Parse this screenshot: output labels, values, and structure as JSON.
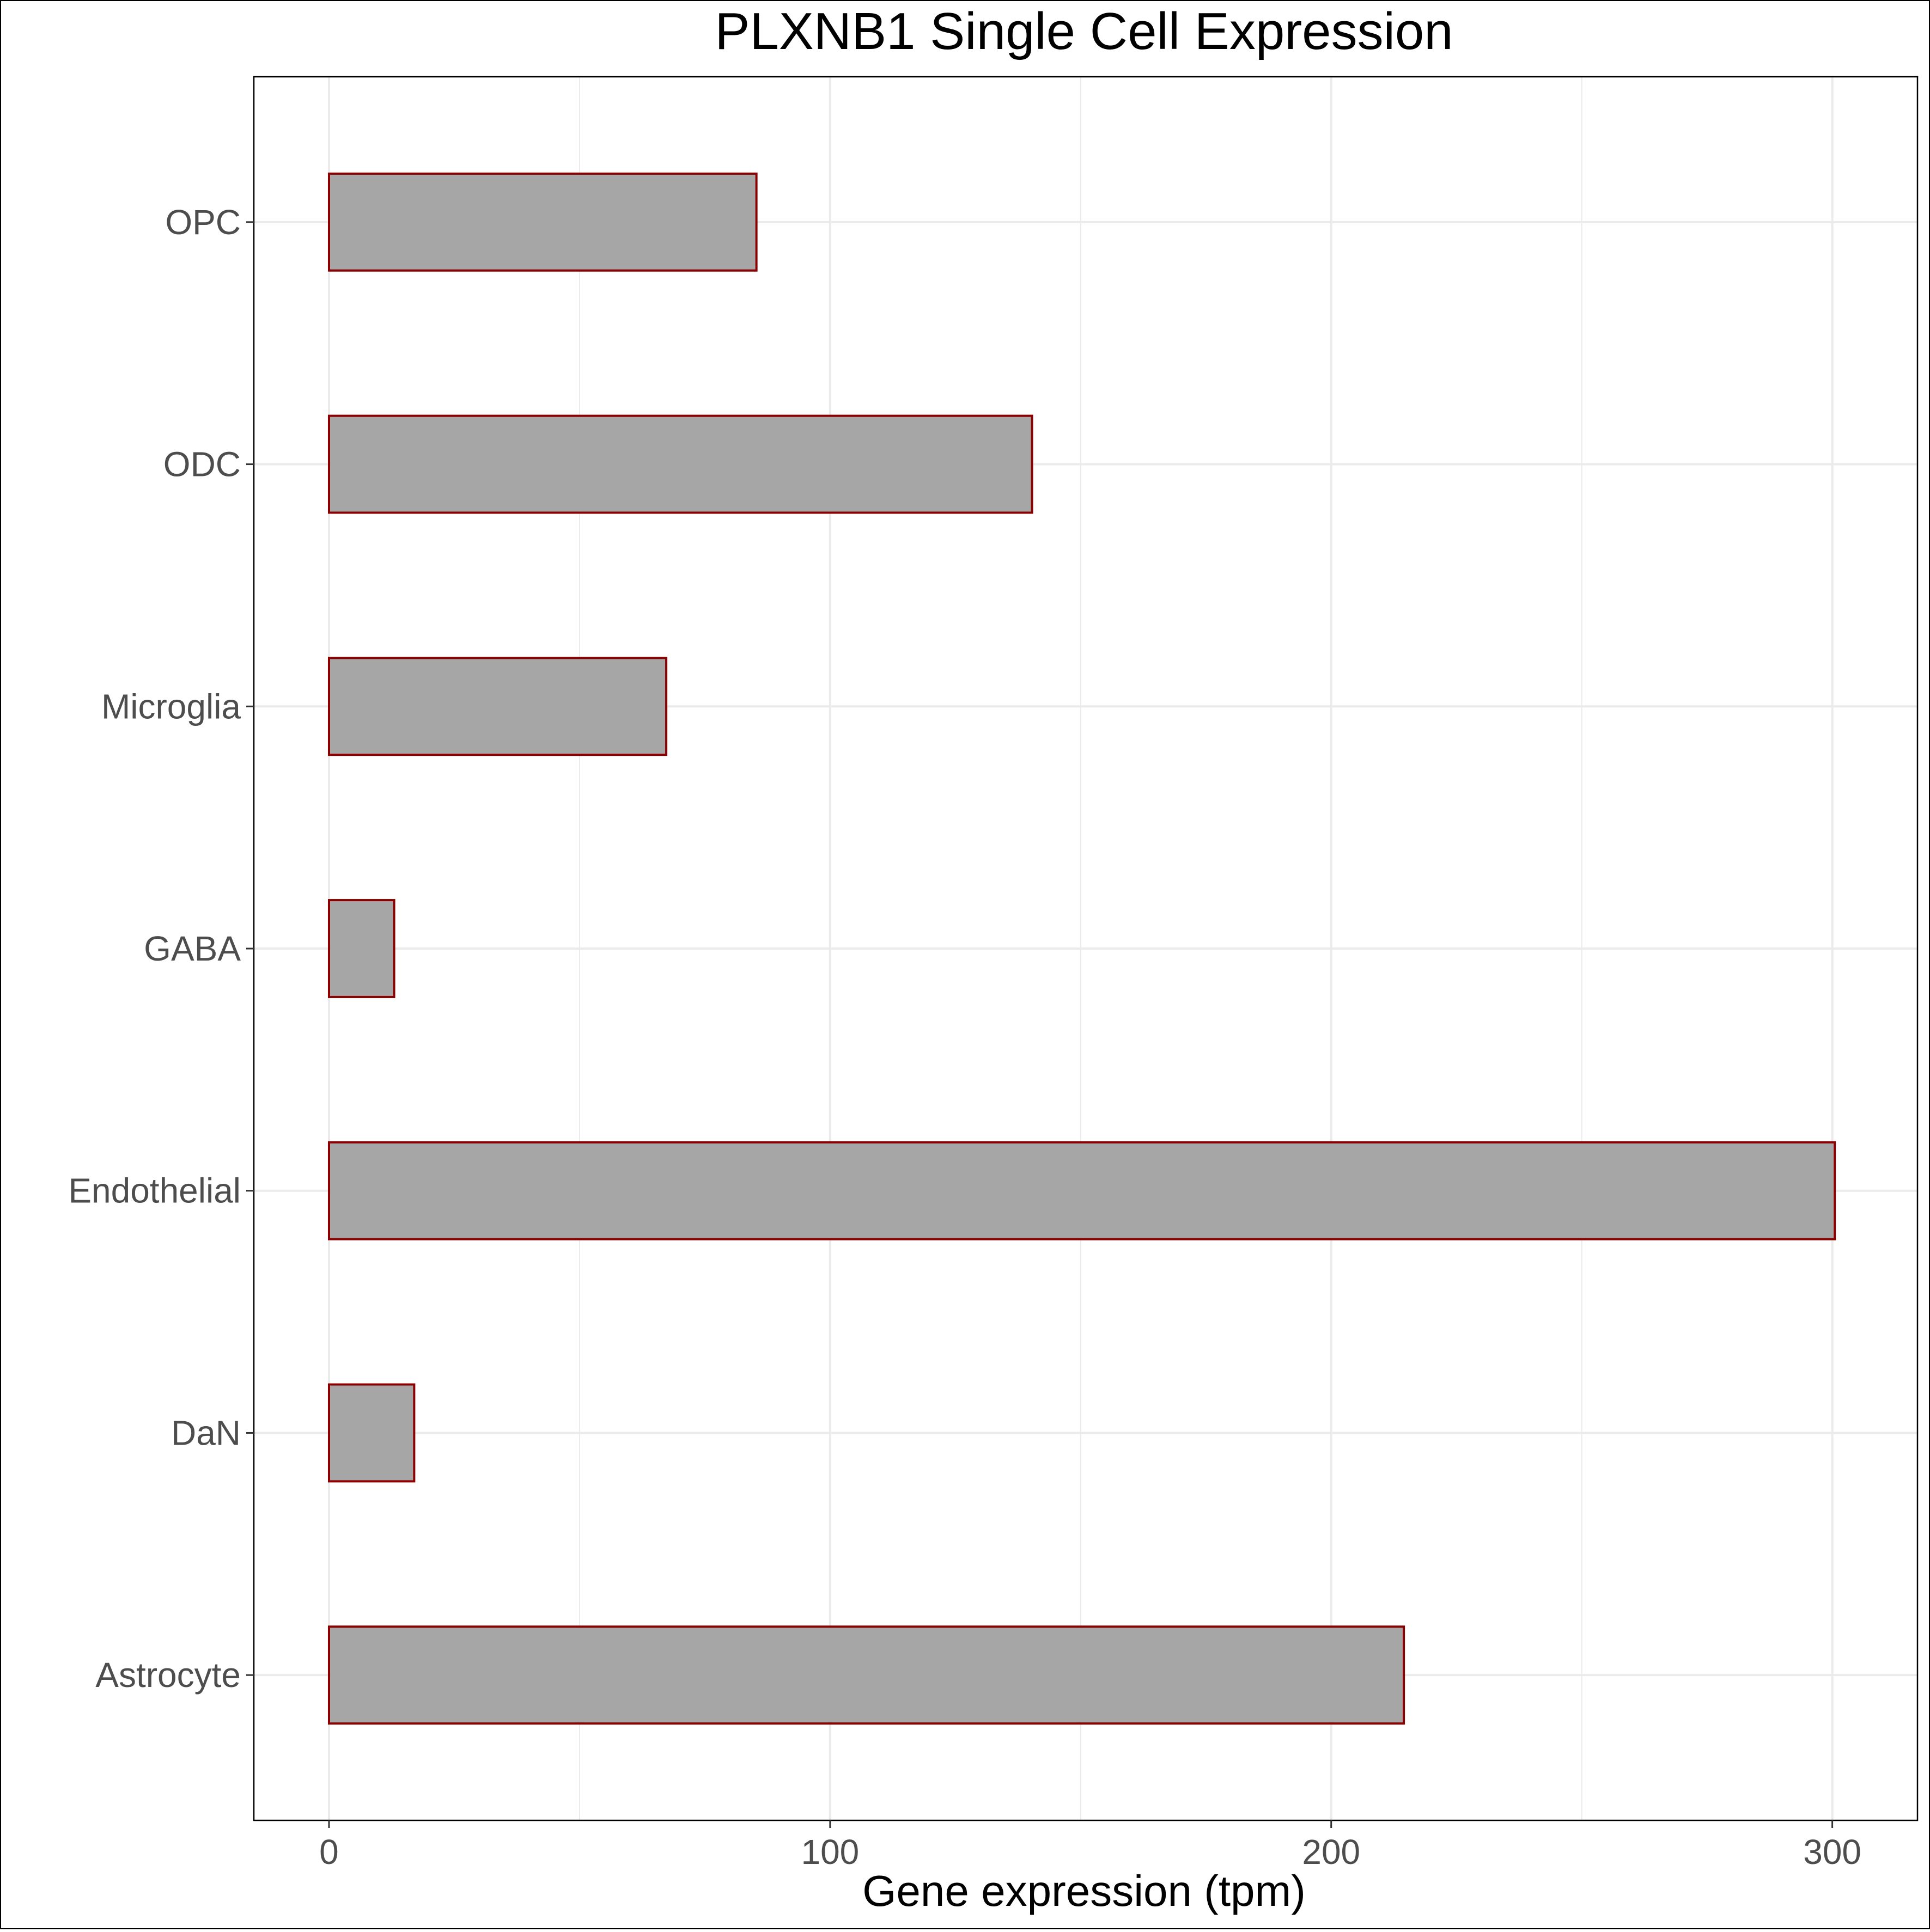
{
  "chart_data": {
    "type": "bar",
    "orientation": "horizontal",
    "title": "PLXNB1 Single Cell Expression",
    "xlabel": "Gene expression (tpm)",
    "ylabel": "",
    "categories": [
      "Astrocyte",
      "DaN",
      "Endothelial",
      "GABA",
      "Microglia",
      "ODC",
      "OPC"
    ],
    "values": [
      214.5,
      17,
      300.5,
      13,
      67.3,
      140.3,
      85.3
    ],
    "xlim": [
      -15,
      317
    ],
    "xticks": [
      0,
      100,
      200,
      300
    ],
    "grid": true,
    "legend": "none"
  },
  "colors": {
    "bar_fill": "#a6a6a6",
    "bar_stroke": "#8b0000",
    "gridline": "#ebebeb",
    "tick_label": "#4d4d4d",
    "panel_border": "#000000"
  }
}
